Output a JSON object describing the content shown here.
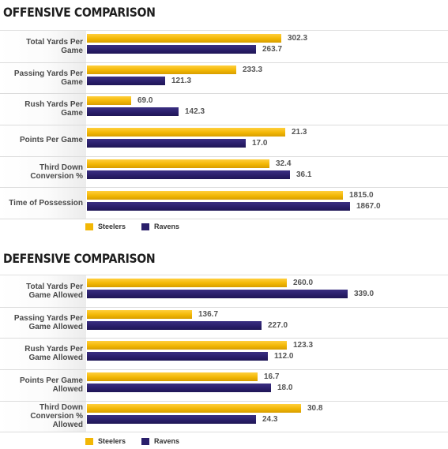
{
  "chart_data": [
    {
      "type": "bar",
      "orientation": "horizontal",
      "title": "OFFENSIVE COMPARISON",
      "categories": [
        "Total Yards Per Game",
        "Passing Yards Per Game",
        "Rush Yards Per Game",
        "Points Per Game",
        "Third Down Conversion %",
        "Time of Possession"
      ],
      "series": [
        {
          "name": "Steelers",
          "color": "#f2b705",
          "values": [
            302.3,
            233.3,
            69.0,
            21.3,
            32.4,
            1815.0
          ],
          "labels": [
            "302.3",
            "233.3",
            "69.0",
            "21.3",
            "32.4",
            "1815.0"
          ],
          "widths": [
            0.738,
            0.569,
            0.168,
            0.755,
            0.693,
            0.972
          ]
        },
        {
          "name": "Ravens",
          "color": "#2a1f6b",
          "values": [
            263.7,
            121.3,
            142.3,
            17.0,
            36.1,
            1867.0
          ],
          "labels": [
            "263.7",
            "121.3",
            "142.3",
            "17.0",
            "36.1",
            "1867.0"
          ],
          "widths": [
            0.643,
            0.296,
            0.347,
            0.603,
            0.772,
            1.0
          ]
        }
      ],
      "legend": "bottom-left",
      "grid": true
    },
    {
      "type": "bar",
      "orientation": "horizontal",
      "title": "DEFENSIVE COMPARISON",
      "categories": [
        "Total Yards Per Game Allowed",
        "Passing Yards Per Game Allowed",
        "Rush Yards Per Game Allowed",
        "Points Per Game Allowed",
        "Third Down Conversion % Allowed"
      ],
      "series": [
        {
          "name": "Steelers",
          "color": "#f2b705",
          "values": [
            260.0,
            136.7,
            123.3,
            16.7,
            30.8
          ],
          "labels": [
            "260.0",
            "136.7",
            "123.3",
            "16.7",
            "30.8"
          ],
          "widths": [
            0.76,
            0.4,
            0.76,
            0.649,
            0.815
          ]
        },
        {
          "name": "Ravens",
          "color": "#2a1f6b",
          "values": [
            339.0,
            227.0,
            112.0,
            18.0,
            24.3
          ],
          "labels": [
            "339.0",
            "227.0",
            "112.0",
            "18.0",
            "24.3"
          ],
          "widths": [
            0.991,
            0.663,
            0.689,
            0.699,
            0.643
          ]
        }
      ],
      "legend": "bottom-left",
      "grid": true
    }
  ]
}
